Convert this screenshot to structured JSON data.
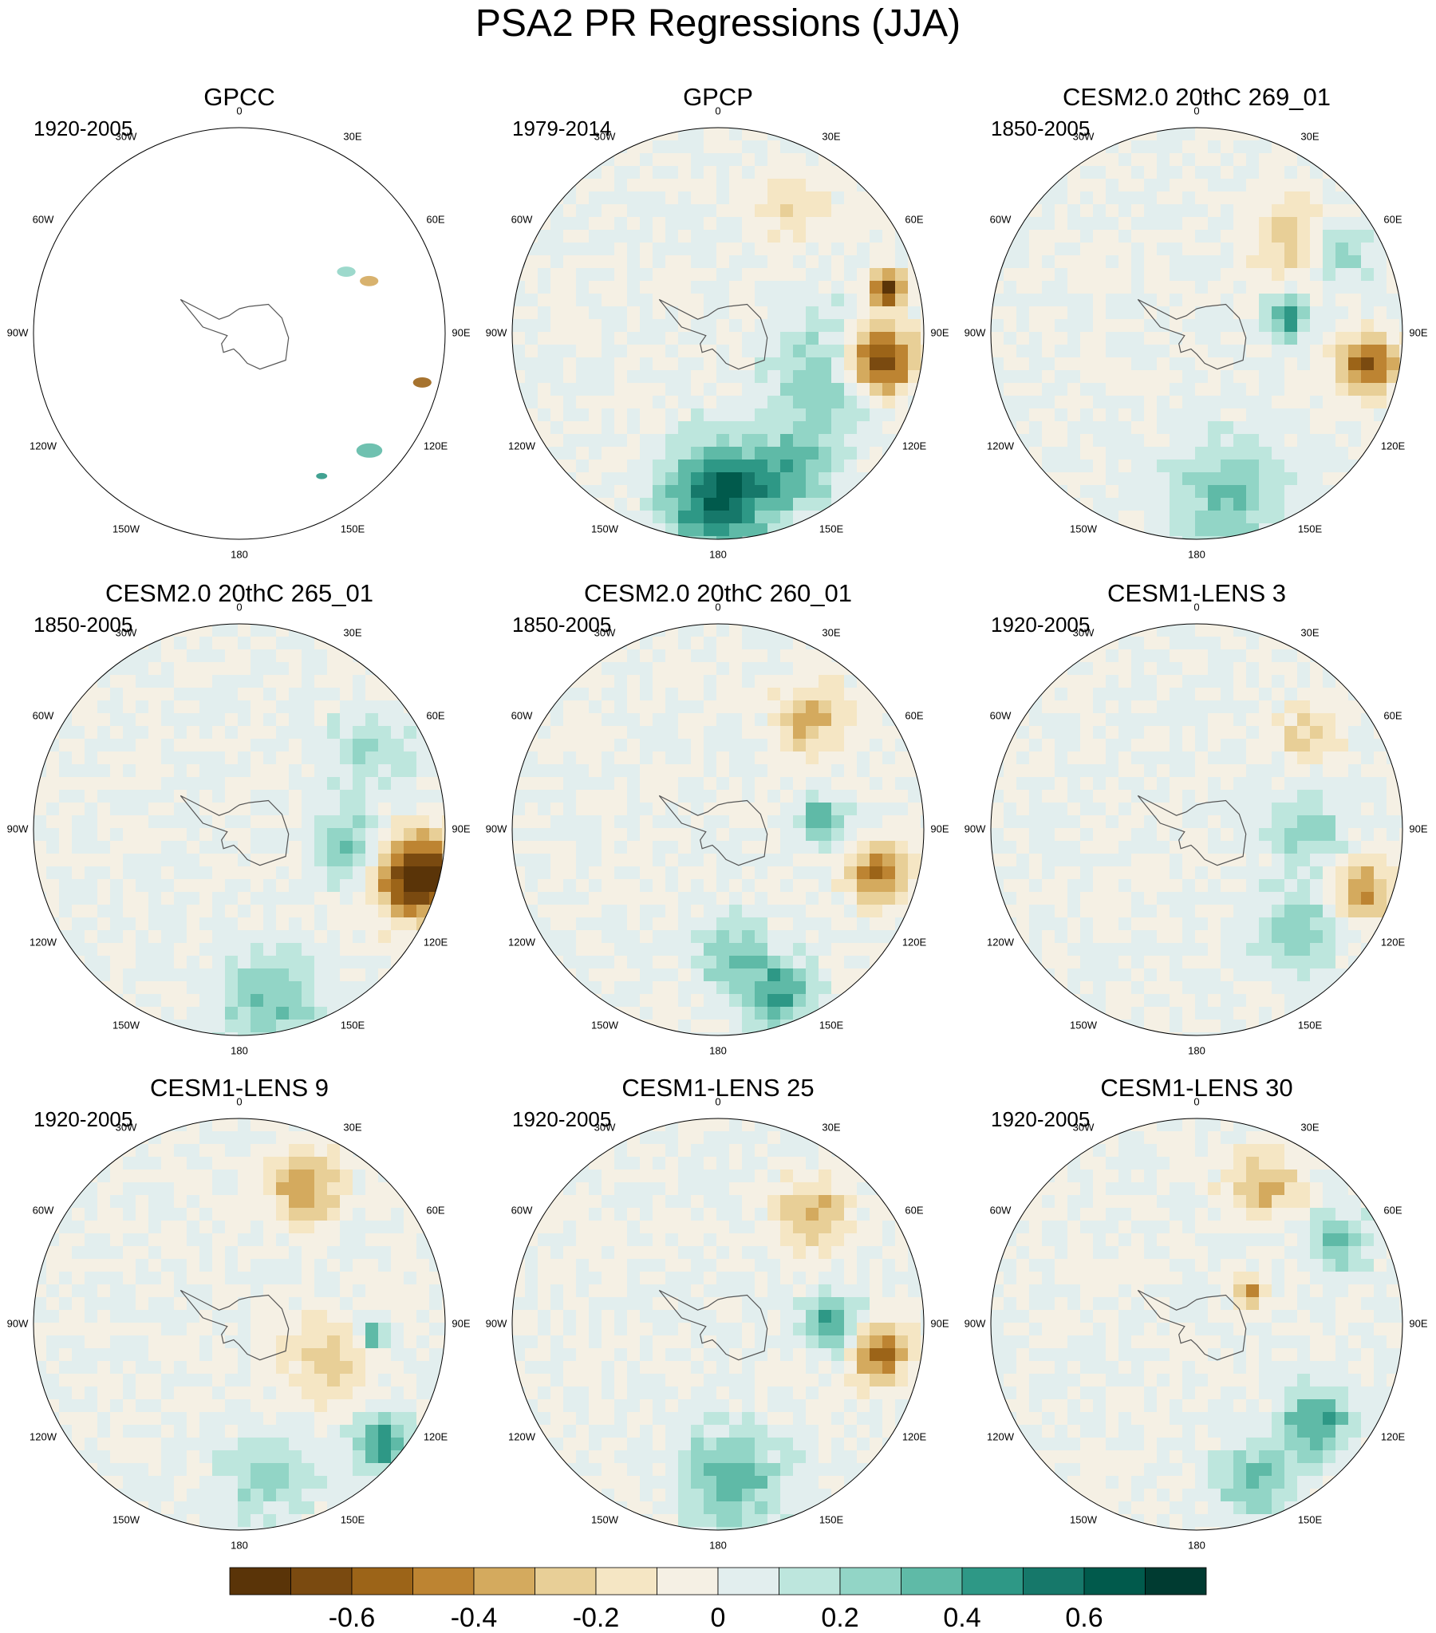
{
  "title": "PSA2 PR Regressions (JJA)",
  "chart_data": {
    "type": "polar-contour-map-grid",
    "title": "PSA2 PR Regressions (JJA)",
    "projection": "South Polar Stereographic",
    "variable": "PR regression",
    "season": "JJA",
    "longitude_labels": [
      "0",
      "30E",
      "60E",
      "90E",
      "120E",
      "150E",
      "180",
      "150W",
      "120W",
      "90W",
      "60W",
      "30W"
    ],
    "panels": [
      {
        "title": "GPCC",
        "period": "1920-2005",
        "land_only": true,
        "features": [
          {
            "lon": 105,
            "r": 0.92,
            "v": -0.55,
            "size": 0.05
          },
          {
            "lon": 68,
            "r": 0.68,
            "v": -0.4,
            "size": 0.05
          },
          {
            "lon": 60,
            "r": 0.6,
            "v": 0.25,
            "size": 0.05
          },
          {
            "lon": 132,
            "r": 0.85,
            "v": 0.3,
            "size": 0.07
          },
          {
            "lon": 150,
            "r": 0.8,
            "v": 0.4,
            "size": 0.03
          }
        ]
      },
      {
        "title": "GPCP",
        "period": "1979-2014",
        "features": [
          {
            "lon": 100,
            "r": 0.8,
            "v": -0.8,
            "size": 0.12
          },
          {
            "lon": 75,
            "r": 0.85,
            "v": -0.75,
            "size": 0.06
          },
          {
            "lon": 110,
            "r": 0.6,
            "v": 0.3,
            "size": 0.2
          },
          {
            "lon": 180,
            "r": 0.8,
            "v": 0.65,
            "size": 0.18
          },
          {
            "lon": 150,
            "r": 0.75,
            "v": 0.3,
            "size": 0.15
          },
          {
            "lon": 30,
            "r": 0.7,
            "v": -0.2,
            "size": 0.12
          }
        ]
      },
      {
        "title": "CESM2.0 20thC 269_01",
        "period": "1850-2005",
        "features": [
          {
            "lon": 100,
            "r": 0.85,
            "v": -0.6,
            "size": 0.1
          },
          {
            "lon": 80,
            "r": 0.45,
            "v": 0.4,
            "size": 0.08
          },
          {
            "lon": 45,
            "r": 0.65,
            "v": -0.25,
            "size": 0.15
          },
          {
            "lon": 170,
            "r": 0.8,
            "v": 0.3,
            "size": 0.2
          },
          {
            "lon": 60,
            "r": 0.8,
            "v": 0.3,
            "size": 0.1
          }
        ]
      },
      {
        "title": "CESM2.0 20thC 265_01",
        "period": "1850-2005",
        "features": [
          {
            "lon": 105,
            "r": 0.9,
            "v": -0.85,
            "size": 0.14
          },
          {
            "lon": 100,
            "r": 0.55,
            "v": 0.3,
            "size": 0.12
          },
          {
            "lon": 170,
            "r": 0.85,
            "v": 0.3,
            "size": 0.18
          },
          {
            "lon": 60,
            "r": 0.75,
            "v": 0.2,
            "size": 0.15
          }
        ]
      },
      {
        "title": "CESM2.0 20thC 260_01",
        "period": "1850-2005",
        "features": [
          {
            "lon": 105,
            "r": 0.8,
            "v": -0.5,
            "size": 0.1
          },
          {
            "lon": 85,
            "r": 0.5,
            "v": 0.4,
            "size": 0.08
          },
          {
            "lon": 40,
            "r": 0.7,
            "v": -0.35,
            "size": 0.12
          },
          {
            "lon": 160,
            "r": 0.85,
            "v": 0.45,
            "size": 0.12
          },
          {
            "lon": 175,
            "r": 0.6,
            "v": 0.3,
            "size": 0.12
          }
        ]
      },
      {
        "title": "CESM1-LENS 3",
        "period": "1920-2005",
        "features": [
          {
            "lon": 110,
            "r": 0.85,
            "v": -0.45,
            "size": 0.1
          },
          {
            "lon": 90,
            "r": 0.55,
            "v": 0.3,
            "size": 0.12
          },
          {
            "lon": 135,
            "r": 0.7,
            "v": 0.25,
            "size": 0.15
          },
          {
            "lon": 50,
            "r": 0.7,
            "v": -0.25,
            "size": 0.1
          }
        ]
      },
      {
        "title": "CESM1-LENS 9",
        "period": "1920-2005",
        "features": [
          {
            "lon": 25,
            "r": 0.75,
            "v": -0.4,
            "size": 0.12
          },
          {
            "lon": 95,
            "r": 0.65,
            "v": 0.5,
            "size": 0.05
          },
          {
            "lon": 130,
            "r": 0.9,
            "v": 0.45,
            "size": 0.1
          },
          {
            "lon": 110,
            "r": 0.45,
            "v": -0.25,
            "size": 0.15
          },
          {
            "lon": 170,
            "r": 0.75,
            "v": 0.25,
            "size": 0.15
          }
        ]
      },
      {
        "title": "CESM1-LENS 25",
        "period": "1920-2005",
        "features": [
          {
            "lon": 100,
            "r": 0.8,
            "v": -0.55,
            "size": 0.1
          },
          {
            "lon": 90,
            "r": 0.55,
            "v": 0.4,
            "size": 0.1
          },
          {
            "lon": 40,
            "r": 0.7,
            "v": -0.35,
            "size": 0.12
          },
          {
            "lon": 175,
            "r": 0.75,
            "v": 0.35,
            "size": 0.18
          }
        ]
      },
      {
        "title": "CESM1-LENS 30",
        "period": "1920-2005",
        "features": [
          {
            "lon": 25,
            "r": 0.75,
            "v": -0.35,
            "size": 0.12
          },
          {
            "lon": 60,
            "r": 0.8,
            "v": 0.35,
            "size": 0.1
          },
          {
            "lon": 130,
            "r": 0.75,
            "v": 0.45,
            "size": 0.12
          },
          {
            "lon": 160,
            "r": 0.8,
            "v": 0.35,
            "size": 0.12
          },
          {
            "lon": 60,
            "r": 0.3,
            "v": -0.4,
            "size": 0.05
          }
        ]
      }
    ],
    "colorbar": {
      "levels": [
        -0.7,
        -0.6,
        -0.5,
        -0.4,
        -0.3,
        -0.2,
        -0.1,
        0,
        0.1,
        0.2,
        0.3,
        0.4,
        0.5,
        0.6,
        0.7
      ],
      "tick_labels": [
        "-0.6",
        "-0.4",
        "-0.2",
        "0",
        "0.2",
        "0.4",
        "0.6"
      ],
      "tick_values": [
        -0.6,
        -0.4,
        -0.2,
        0,
        0.2,
        0.4,
        0.6
      ],
      "colors": [
        "#5a3408",
        "#7a4a10",
        "#9c6418",
        "#bd8432",
        "#d4aa5e",
        "#e8cf97",
        "#f5e6c4",
        "#f5f0e4",
        "#e2eeee",
        "#bde6dd",
        "#92d5c6",
        "#5fbaa7",
        "#2e9886",
        "#16786a",
        "#015a4c",
        "#003b31"
      ]
    }
  }
}
